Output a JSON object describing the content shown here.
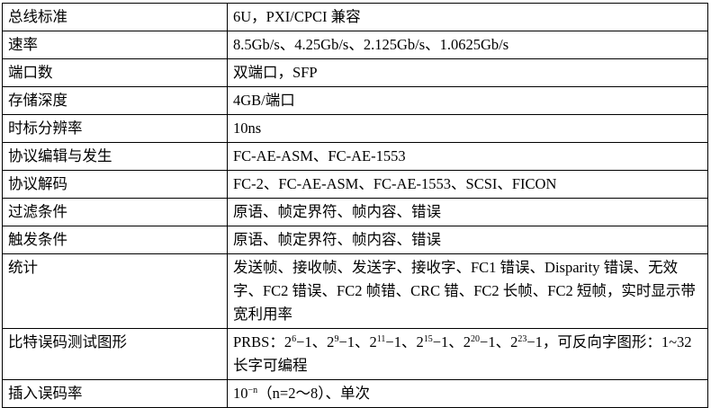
{
  "table": {
    "rows": [
      [
        "总线标准",
        "6U，PXI/CPCI 兼容"
      ],
      [
        "速率",
        "8.5Gb/s、4.25Gb/s、2.125Gb/s、1.0625Gb/s"
      ],
      [
        "端口数",
        "双端口，SFP"
      ],
      [
        "存储深度",
        "4GB/端口"
      ],
      [
        "时标分辨率",
        "10ns"
      ],
      [
        "协议编辑与发生",
        "FC-AE-ASM、FC-AE-1553"
      ],
      [
        "协议解码",
        "FC-2、FC-AE-ASM、FC-AE-1553、SCSI、FICON"
      ],
      [
        "过滤条件",
        "原语、帧定界符、帧内容、错误"
      ],
      [
        "触发条件",
        "原语、帧定界符、帧内容、错误"
      ],
      [
        "统计",
        "发送帧、接收帧、发送字、接收字、FC1 错误、Disparity 错误、无效字、FC2 错误、FC2 帧错、CRC 错、FC2 长帧、FC2 短帧，实时显示带宽利用率"
      ],
      [
        "比特误码测试图形",
        [
          "PRBS：2",
          {
            "sup": "6"
          },
          "−1、2",
          {
            "sup": "9"
          },
          "−1、2",
          {
            "sup": "11"
          },
          "−1、2",
          {
            "sup": "15"
          },
          "−1、2",
          {
            "sup": "20"
          },
          "−1、2",
          {
            "sup": "23"
          },
          "−1，可反向字图形：1~32 长字可编程"
        ]
      ],
      [
        "插入误码率",
        [
          "10",
          {
            "sup": "−n"
          },
          "（n=2～8）、单次"
        ]
      ]
    ]
  }
}
